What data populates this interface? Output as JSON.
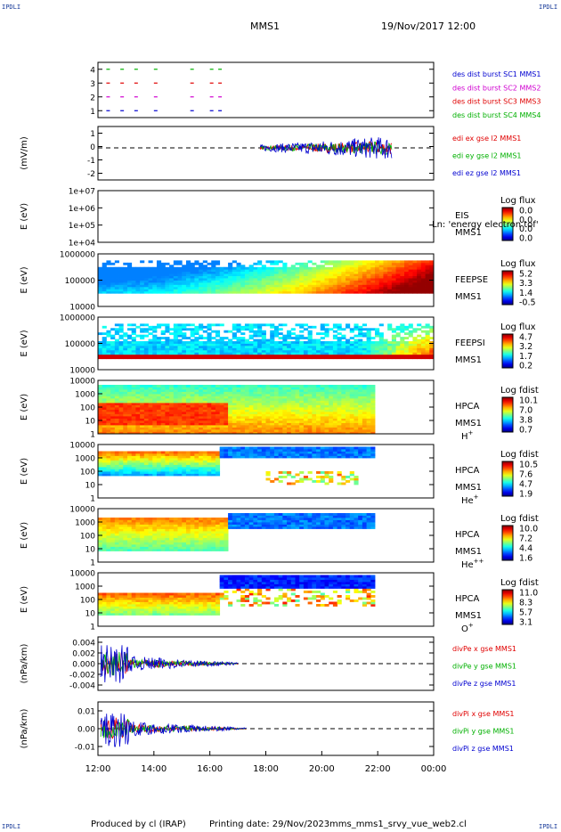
{
  "corners": {
    "tl": "IPDLI",
    "tr": "IPDLI",
    "bl": "IPDLI",
    "br": "IPDLI"
  },
  "header": {
    "spacecraft": "MMS1",
    "date": "19/Nov/2017 12:00"
  },
  "footer": {
    "producer": "Produced by cl (IRAP)",
    "printing": "Printing date: 29/Nov/2023",
    "file": "mms_mms1_srvy_vue_web2.cl"
  },
  "time_axis": {
    "ticks": [
      "12:00",
      "14:00",
      "16:00",
      "18:00",
      "20:00",
      "22:00",
      "00:00"
    ],
    "start_hour": 12,
    "end_hour": 24
  },
  "colors": {
    "red": "#e00000",
    "green": "#00b000",
    "blue": "#0000d0",
    "magenta": "#d000d0",
    "black": "#000000"
  },
  "chart_data": [
    {
      "id": "burst",
      "type": "scatter",
      "ylabel": "",
      "yticks": [
        "4",
        "3",
        "2",
        "1"
      ],
      "ylim": [
        0.5,
        4.5
      ],
      "legend": [
        {
          "label": "des dist burst SC1 MMS1",
          "color": "#0000d0"
        },
        {
          "label": "des dist burst SC2 MMS2",
          "color": "#d000d0"
        },
        {
          "label": "des dist burst SC3 MMS3",
          "color": "#e00000"
        },
        {
          "label": "des dist burst SC4 MMS4",
          "color": "#00b000"
        }
      ],
      "series": [
        {
          "y": 4,
          "color": "#00b000",
          "hours": [
            12.3,
            12.8,
            13.3,
            14.0,
            15.3,
            16.0,
            16.3
          ]
        },
        {
          "y": 3,
          "color": "#e00000",
          "hours": [
            12.3,
            12.8,
            13.3,
            14.0,
            15.3,
            16.0,
            16.3
          ]
        },
        {
          "y": 2,
          "color": "#d000d0",
          "hours": [
            12.3,
            12.8,
            13.3,
            14.0,
            15.3,
            16.0,
            16.3
          ]
        },
        {
          "y": 1,
          "color": "#0000d0",
          "hours": [
            12.3,
            12.8,
            13.3,
            14.0,
            15.3,
            16.0,
            16.3
          ]
        }
      ]
    },
    {
      "id": "edi",
      "type": "line",
      "ylabel": "(mV/m)",
      "yticks": [
        "1",
        "0",
        "-1",
        "-2"
      ],
      "ylim": [
        -2.4,
        1.6
      ],
      "legend": [
        {
          "label": "edi ex gse l2 MMS1",
          "color": "#e00000"
        },
        {
          "label": "edi ey gse l2 MMS1",
          "color": "#00b000"
        },
        {
          "label": "edi ez gse l2 MMS1",
          "color": "#0000d0"
        }
      ],
      "data_start_hour": 17.8,
      "data_end_hour": 22.5,
      "amplitude": 0.9
    },
    {
      "id": "eis",
      "type": "heatmap",
      "ylabel": "E (eV)",
      "yticks": [
        "1e+07",
        "1e+06",
        "1e+05",
        "1e+04"
      ],
      "empty": true,
      "labels": [
        "EIS",
        "MMS1"
      ],
      "overlay": "Ln: 'energy electron tof'",
      "cb_title": "Log flux",
      "cb_ticks": [
        "0.0",
        "0.0",
        "0.0",
        "0.0"
      ]
    },
    {
      "id": "feepse",
      "type": "heatmap",
      "ylabel": "E (eV)",
      "yticks": [
        "1000000",
        "100000",
        "10000"
      ],
      "labels": [
        "FEEPSE",
        "MMS1"
      ],
      "cb_title": "Log flux",
      "cb_ticks": [
        "5.2",
        "3.3",
        "1.4",
        "-0.5"
      ],
      "pattern": "feepse"
    },
    {
      "id": "feepsi",
      "type": "heatmap",
      "ylabel": "E (eV)",
      "yticks": [
        "1000000",
        "100000",
        "10000"
      ],
      "labels": [
        "FEEPSI",
        "MMS1"
      ],
      "cb_title": "Log flux",
      "cb_ticks": [
        "4.7",
        "3.2",
        "1.7",
        "0.2"
      ],
      "pattern": "feepsi"
    },
    {
      "id": "hpca_h",
      "type": "heatmap",
      "ylabel": "E (eV)",
      "yticks": [
        "10000",
        "1000",
        "100",
        "10",
        "1"
      ],
      "labels": [
        "HPCA",
        "MMS1",
        "H+"
      ],
      "cb_title": "Log fdist",
      "cb_ticks": [
        "10.1",
        "7.0",
        "3.8",
        "0.7"
      ],
      "pattern": "h"
    },
    {
      "id": "hpca_he",
      "type": "heatmap",
      "ylabel": "E (eV)",
      "yticks": [
        "10000",
        "1000",
        "100",
        "10",
        "1"
      ],
      "labels": [
        "HPCA",
        "MMS1",
        "He+"
      ],
      "cb_title": "Log fdist",
      "cb_ticks": [
        "10.5",
        "7.6",
        "4.7",
        "1.9"
      ],
      "pattern": "he"
    },
    {
      "id": "hpca_hepp",
      "type": "heatmap",
      "ylabel": "E (eV)",
      "yticks": [
        "10000",
        "1000",
        "100",
        "10",
        "1"
      ],
      "labels": [
        "HPCA",
        "MMS1",
        "He++"
      ],
      "cb_title": "Log fdist",
      "cb_ticks": [
        "10.0",
        "7.2",
        "4.4",
        "1.6"
      ],
      "pattern": "hepp"
    },
    {
      "id": "hpca_o",
      "type": "heatmap",
      "ylabel": "E (eV)",
      "yticks": [
        "10000",
        "1000",
        "100",
        "10",
        "1"
      ],
      "labels": [
        "HPCA",
        "MMS1",
        "O+"
      ],
      "cb_title": "Log fdist",
      "cb_ticks": [
        "11.0",
        "8.3",
        "5.7",
        "3.1"
      ],
      "pattern": "o"
    },
    {
      "id": "divpe",
      "type": "line",
      "ylabel": "(nPa/km)",
      "yticks": [
        "0.004",
        "0.002",
        "0.000",
        "-0.002",
        "-0.004"
      ],
      "ylim": [
        -0.0055,
        0.0055
      ],
      "legend": [
        {
          "label": "divPe x gse MMS1",
          "color": "#e00000"
        },
        {
          "label": "divPe y gse MMS1",
          "color": "#00b000"
        },
        {
          "label": "divPe z gse MMS1",
          "color": "#0000d0"
        }
      ],
      "data_start_hour": 12.1,
      "data_end_hour": 17.0,
      "amplitude": 0.004
    },
    {
      "id": "divpi",
      "type": "line",
      "ylabel": "(nPa/km)",
      "yticks": [
        "0.01",
        "0.00",
        "-0.01"
      ],
      "ylim": [
        -0.016,
        0.016
      ],
      "legend": [
        {
          "label": "divPi x gse MMS1",
          "color": "#e00000"
        },
        {
          "label": "divPi y gse MMS1",
          "color": "#00b000"
        },
        {
          "label": "divPi z gse MMS1",
          "color": "#0000d0"
        }
      ],
      "data_start_hour": 12.1,
      "data_end_hour": 17.3,
      "amplitude": 0.011
    }
  ]
}
